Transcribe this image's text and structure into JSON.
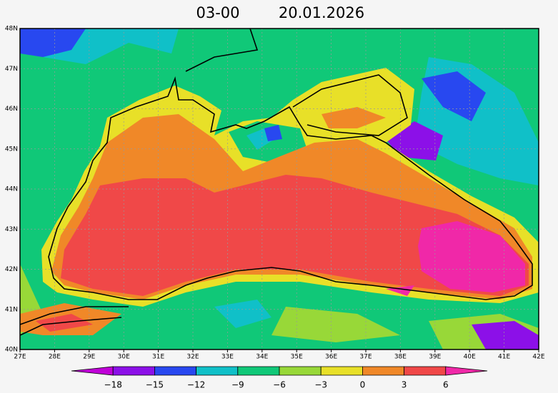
{
  "header": {
    "time": "03-00",
    "date": "20.01.2026"
  },
  "map": {
    "lon_labels": [
      "27E",
      "28E",
      "29E",
      "30E",
      "31E",
      "32E",
      "33E",
      "34E",
      "35E",
      "36E",
      "37E",
      "38E",
      "39E",
      "40E",
      "41E",
      "42E"
    ],
    "lat_labels": [
      "40N",
      "41N",
      "42N",
      "43N",
      "44N",
      "45N",
      "46N",
      "47N",
      "48N"
    ]
  },
  "colorbar": {
    "colors": [
      "#c000d8",
      "#8c10e8",
      "#2848f0",
      "#10c0c8",
      "#10c878",
      "#98d838",
      "#e8e028",
      "#f08828",
      "#f04848",
      "#f028a8"
    ],
    "labels": [
      "−18",
      "−15",
      "−12",
      "−9",
      "−6",
      "−3",
      "0",
      "3",
      "6"
    ]
  }
}
